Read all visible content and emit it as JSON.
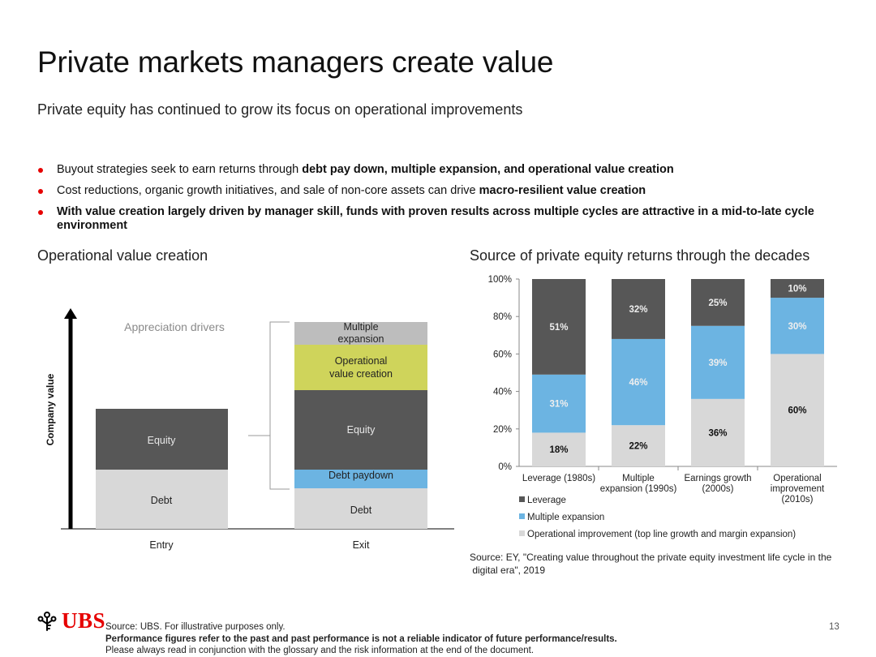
{
  "title": "Private markets managers create value",
  "subtitle": "Private equity has continued to grow its focus on operational improvements",
  "bullets": [
    {
      "pre": "Buyout strategies seek to earn returns through ",
      "bold": "debt pay down, multiple expansion, and operational value creation"
    },
    {
      "pre": "Cost reductions, organic growth initiatives, and sale of non-core assets can drive ",
      "bold": "macro-resilient value creation"
    },
    {
      "pre": "",
      "bold": "With value creation largely driven by manager skill, funds with proven results across multiple cycles are attractive in a mid-to-late cycle environment"
    }
  ],
  "left_heading": "Operational value creation",
  "right_heading": "Source of private equity returns through the decades",
  "diagram": {
    "y_axis_label": "Company value",
    "appreciation_label": "Appreciation drivers",
    "entry_label": "Entry",
    "exit_label": "Exit",
    "entry": {
      "equity": "Equity",
      "debt": "Debt"
    },
    "exit": {
      "multiple_line1": "Multiple",
      "multiple_line2": "expansion",
      "operational_line1": "Operational",
      "operational_line2": "value creation",
      "equity": "Equity",
      "debt_paydown": "Debt  paydown",
      "debt": "Debt"
    }
  },
  "chart_data": {
    "type": "bar",
    "stacked": true,
    "title": "Source of private equity returns through the decades",
    "categories": [
      [
        "Leverage (1980s)"
      ],
      [
        "Multiple",
        "expansion (1990s)"
      ],
      [
        "Earnings growth",
        "(2000s)"
      ],
      [
        "Operational",
        "improvement",
        "(2010s)"
      ]
    ],
    "series": [
      {
        "name": "Operational improvement (top line growth and margin expansion)",
        "color": "#d8d8d8",
        "values": [
          18,
          22,
          36,
          60
        ]
      },
      {
        "name": "Multiple expansion",
        "color": "#6cb4e2",
        "values": [
          31,
          46,
          39,
          30
        ]
      },
      {
        "name": "Leverage",
        "color": "#575757",
        "values": [
          51,
          32,
          25,
          10
        ]
      }
    ],
    "legend_order": [
      "Leverage",
      "Multiple expansion",
      "Operational improvement (top line growth and margin expansion)"
    ],
    "legend_colors": [
      "#575757",
      "#6cb4e2",
      "#d8d8d8"
    ],
    "ylim": [
      0,
      100
    ],
    "yticks": [
      "0%",
      "20%",
      "40%",
      "60%",
      "80%",
      "100%"
    ],
    "ytick_values": [
      0,
      20,
      40,
      60,
      80,
      100
    ],
    "value_suffix": "%",
    "grid": false
  },
  "chart_source_line1": "Source: EY, \"Creating value throughout the private equity investment life cycle in the",
  "chart_source_line2": " digital era\", 2019",
  "footer": {
    "logo_text": "UBS",
    "source": "Source: UBS. For illustrative purposes only.",
    "disclaimer_bold": "Performance figures refer to the past and past performance is not a reliable indicator of future performance/results.",
    "disclaimer": "Please always read in conjunction with the glossary and the risk information at the end of the document.",
    "page_number": "13"
  }
}
